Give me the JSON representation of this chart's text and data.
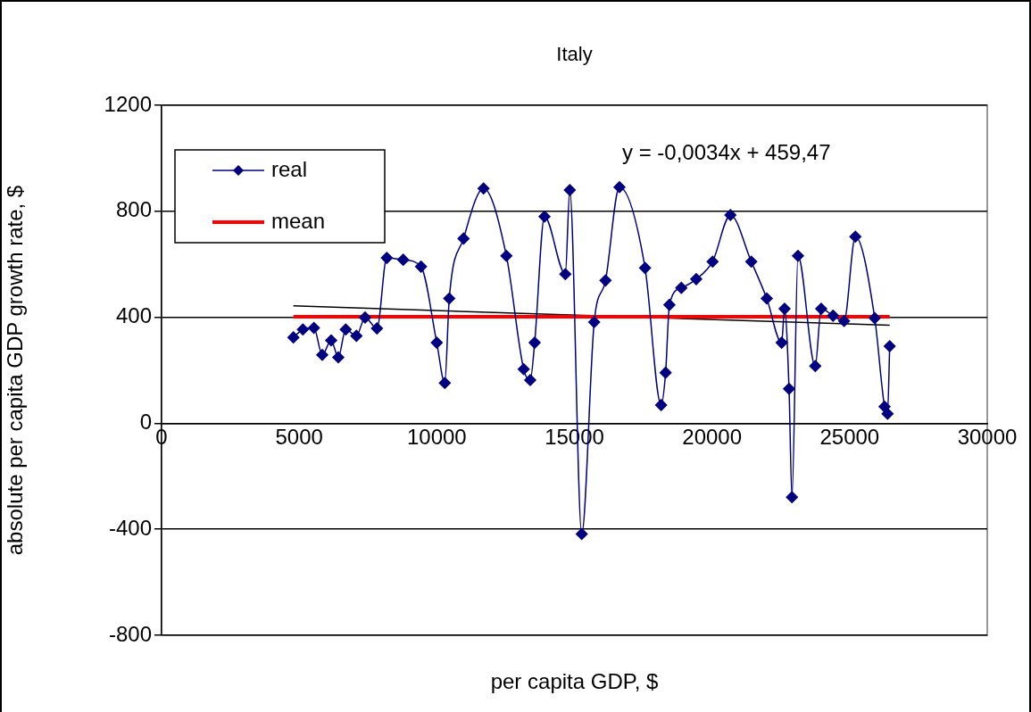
{
  "chart_data": {
    "type": "line",
    "title": "Italy",
    "xlabel": "per capita GDP, $",
    "ylabel": "absolute per capita GDP growth rate, $",
    "xlim": [
      0,
      30000
    ],
    "xticks": [
      0,
      5000,
      10000,
      15000,
      20000,
      25000,
      30000
    ],
    "ylim": [
      -800,
      1200
    ],
    "yticks": [
      -800,
      -400,
      0,
      400,
      800,
      1200
    ],
    "grid": "y",
    "legend": "top left",
    "annotations": [
      "y = -0,0034x + 459,47"
    ],
    "series": [
      {
        "name": "real",
        "color": "#000080",
        "marker": "diamond",
        "x": [
          4790,
          5134,
          5535,
          5838,
          6162,
          6421,
          6691,
          7080,
          7394,
          7826,
          8183,
          8780,
          9427,
          9999,
          10290,
          10453,
          10972,
          11698,
          12528,
          13157,
          13394,
          13556,
          13913,
          14670,
          14832,
          15265,
          15719,
          16130,
          16637,
          17567,
          18151,
          18313,
          18453,
          18885,
          19426,
          20020,
          20668,
          21426,
          21988,
          22529,
          22636,
          22798,
          22905,
          23123,
          23750,
          23966,
          24398,
          24798,
          25208,
          25911,
          26268,
          26377,
          26455
        ],
        "values": [
          324,
          354,
          360,
          258,
          313,
          249,
          354,
          330,
          399,
          358,
          624,
          617,
          591,
          304,
          152,
          471,
          697,
          886,
          632,
          204,
          163,
          304,
          780,
          563,
          880,
          -418,
          382,
          539,
          891,
          586,
          69,
          191,
          447,
          511,
          544,
          610,
          786,
          610,
          471,
          304,
          432,
          130,
          -279,
          632,
          216,
          432,
          406,
          386,
          704,
          397,
          63,
          36,
          291
        ]
      },
      {
        "name": "mean",
        "color": "#ff0000",
        "marker": "none",
        "x": [
          4790,
          26455
        ],
        "values": [
          402,
          402
        ]
      },
      {
        "type": "line",
        "color": "#000000",
        "marker": "none",
        "x": [
          4790,
          26455
        ],
        "values": [
          443,
          370
        ]
      }
    ]
  }
}
